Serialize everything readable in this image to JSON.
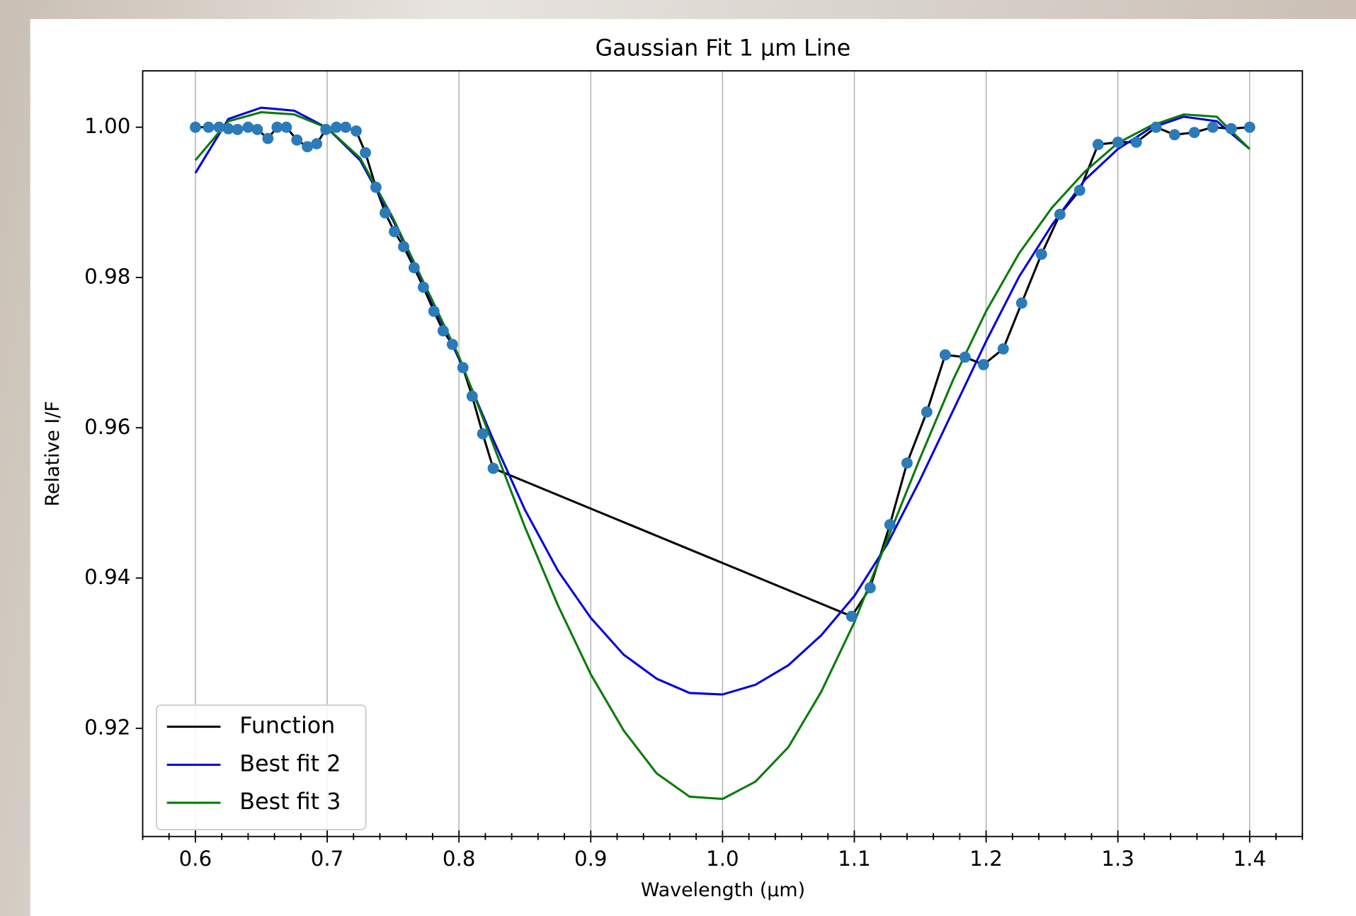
{
  "chart_data": {
    "type": "line",
    "title": "Gaussian Fit 1 µm Line",
    "x_label": "Wavelength (µm)",
    "y_label": "Relative I/F",
    "xlim": [
      0.56,
      1.44
    ],
    "ylim": [
      0.9056,
      1.0075
    ],
    "xticks": [
      0.6,
      0.7,
      0.8,
      0.9,
      {
        "value": 1.0,
        "label": "1.0"
      },
      1.1,
      1.2,
      1.3,
      1.4
    ],
    "xminorticks": [
      0.56,
      0.58,
      0.62,
      0.64,
      0.66,
      0.68,
      0.72,
      0.74,
      0.76,
      0.78,
      0.82,
      0.84,
      0.86,
      0.88,
      0.92,
      0.94,
      0.96,
      0.98,
      1.02,
      1.04,
      1.06,
      1.08,
      1.12,
      1.14,
      1.16,
      1.18,
      1.22,
      1.24,
      1.26,
      1.28,
      1.32,
      1.34,
      1.36,
      1.38,
      1.42,
      1.44
    ],
    "yticks": [
      {
        "value": 0.92,
        "label": "0.92"
      },
      {
        "value": 0.94,
        "label": "0.94"
      },
      {
        "value": 0.96,
        "label": "0.96"
      },
      {
        "value": 0.98,
        "label": "0.98"
      },
      {
        "value": 1.0,
        "label": "1.00"
      }
    ],
    "grid": "x",
    "legend": "lower left",
    "series": [
      {
        "name": "Function",
        "color": "#000000",
        "marker_color": "#2b7bb9",
        "x": [
          0.6,
          0.61,
          0.618,
          0.625,
          0.632,
          0.64,
          0.647,
          0.655,
          0.662,
          0.669,
          0.677,
          0.685,
          0.692,
          0.699,
          0.707,
          0.714,
          0.722,
          0.729,
          0.737,
          0.744,
          0.751,
          0.758,
          0.766,
          0.773,
          0.781,
          0.788,
          0.795,
          0.803,
          0.81,
          0.818,
          0.826,
          1.098,
          1.112,
          1.127,
          1.14,
          1.155,
          1.169,
          1.184,
          1.198,
          1.213,
          1.227,
          1.242,
          1.256,
          1.271,
          1.285,
          1.3,
          1.314,
          1.329,
          1.343,
          1.358,
          1.372,
          1.386,
          1.4
        ],
        "values": [
          1.0,
          1.0,
          1.0,
          0.9998,
          0.9997,
          1.0,
          0.9997,
          0.9985,
          1.0,
          1.0,
          0.9983,
          0.9974,
          0.9978,
          0.9997,
          1.0,
          1.0,
          0.9995,
          0.9966,
          0.992,
          0.9886,
          0.9861,
          0.9841,
          0.9813,
          0.9787,
          0.9755,
          0.9729,
          0.9711,
          0.968,
          0.9642,
          0.9592,
          0.9546,
          0.9349,
          0.9387,
          0.9471,
          0.9553,
          0.9621,
          0.9697,
          0.9694,
          0.9684,
          0.9705,
          0.9766,
          0.9831,
          0.9884,
          0.9916,
          0.9977,
          0.998,
          0.998,
          1.0,
          0.999,
          0.9993,
          1.0,
          0.9998,
          1.0
        ]
      },
      {
        "name": "Best fit 2",
        "color": "#0000dd",
        "x": [
          0.6,
          0.625,
          0.65,
          0.675,
          0.7,
          0.725,
          0.75,
          0.775,
          0.8,
          0.825,
          0.85,
          0.875,
          0.9,
          0.925,
          0.95,
          0.975,
          1.0,
          1.025,
          1.05,
          1.075,
          1.1,
          1.125,
          1.15,
          1.175,
          1.2,
          1.225,
          1.25,
          1.275,
          1.3,
          1.325,
          1.35,
          1.375,
          1.4
        ],
        "values": [
          0.9939,
          1.0011,
          1.0026,
          1.0022,
          0.9999,
          0.9956,
          0.9876,
          0.9784,
          0.9692,
          0.9588,
          0.9491,
          0.941,
          0.9347,
          0.9298,
          0.9266,
          0.9247,
          0.9245,
          0.9258,
          0.9284,
          0.9324,
          0.9376,
          0.9445,
          0.9531,
          0.9623,
          0.9715,
          0.9801,
          0.987,
          0.993,
          0.9971,
          0.9999,
          1.0014,
          1.0008,
          0.9971
        ]
      },
      {
        "name": "Best fit 3",
        "color": "#0a7a0a",
        "x": [
          0.6,
          0.625,
          0.65,
          0.675,
          0.7,
          0.725,
          0.75,
          0.775,
          0.8,
          0.825,
          0.85,
          0.875,
          0.9,
          0.925,
          0.95,
          0.975,
          1.0,
          1.025,
          1.05,
          1.075,
          1.1,
          1.125,
          1.15,
          1.175,
          1.2,
          1.225,
          1.25,
          1.275,
          1.3,
          1.325,
          1.35,
          1.375,
          1.4
        ],
        "values": [
          0.9956,
          1.0008,
          1.002,
          1.0017,
          0.9999,
          0.9959,
          0.9879,
          0.9787,
          0.9695,
          0.9582,
          0.9468,
          0.9364,
          0.9272,
          0.9197,
          0.914,
          0.9109,
          0.9106,
          0.9129,
          0.9175,
          0.9249,
          0.9341,
          0.9451,
          0.956,
          0.9664,
          0.9755,
          0.9832,
          0.9893,
          0.9941,
          0.9979,
          1.0002,
          1.0017,
          1.0014,
          0.9971
        ]
      }
    ]
  }
}
